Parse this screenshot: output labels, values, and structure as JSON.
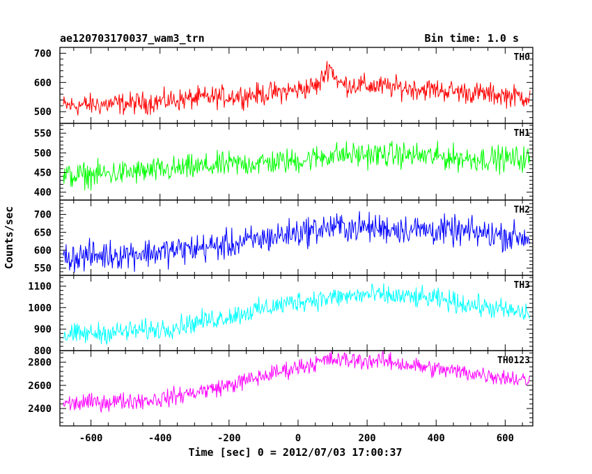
{
  "header": {
    "title": "ae120703170037_wam3_trn",
    "bin_time": "Bin time: 1.0 s"
  },
  "chart_data": {
    "type": "line",
    "xlabel": "Time [sec] 0 = 2012/07/03 17:00:37",
    "ylabel": "Counts/sec",
    "xlim": [
      -690,
      680
    ],
    "x_range": [
      -680,
      672
    ],
    "x_ticks": [
      -600,
      -400,
      -200,
      0,
      200,
      400,
      600
    ],
    "grid": false,
    "panels": [
      {
        "name": "TH0",
        "color": "#ff0000",
        "ylim": [
          460,
          720
        ],
        "y_ticks": [
          500,
          600,
          700
        ],
        "trend": [
          [
            -680,
            520
          ],
          [
            -450,
            530
          ],
          [
            -300,
            545
          ],
          [
            -100,
            560
          ],
          [
            0,
            575
          ],
          [
            60,
            590
          ],
          [
            90,
            660
          ],
          [
            120,
            595
          ],
          [
            250,
            585
          ],
          [
            400,
            575
          ],
          [
            550,
            560
          ],
          [
            672,
            550
          ]
        ],
        "noise_amplitude": 35
      },
      {
        "name": "TH1",
        "color": "#00ff00",
        "ylim": [
          380,
          575
        ],
        "y_ticks": [
          400,
          450,
          500,
          550
        ],
        "trend": [
          [
            -680,
            440
          ],
          [
            -400,
            455
          ],
          [
            -200,
            470
          ],
          [
            0,
            480
          ],
          [
            100,
            495
          ],
          [
            300,
            495
          ],
          [
            500,
            485
          ],
          [
            672,
            485
          ]
        ],
        "noise_amplitude": 30
      },
      {
        "name": "TH2",
        "color": "#0000ff",
        "ylim": [
          530,
          740
        ],
        "y_ticks": [
          550,
          600,
          650,
          700
        ],
        "trend": [
          [
            -680,
            580
          ],
          [
            -400,
            595
          ],
          [
            -200,
            615
          ],
          [
            0,
            650
          ],
          [
            100,
            665
          ],
          [
            300,
            660
          ],
          [
            500,
            650
          ],
          [
            672,
            635
          ]
        ],
        "noise_amplitude": 38
      },
      {
        "name": "TH3",
        "color": "#00ffff",
        "ylim": [
          800,
          1150
        ],
        "y_ticks": [
          800,
          900,
          1000,
          1100
        ],
        "trend": [
          [
            -680,
            870
          ],
          [
            -400,
            900
          ],
          [
            -200,
            960
          ],
          [
            0,
            1030
          ],
          [
            200,
            1060
          ],
          [
            400,
            1040
          ],
          [
            550,
            1000
          ],
          [
            672,
            970
          ]
        ],
        "noise_amplitude": 45
      },
      {
        "name": "TH0123",
        "color": "#ff00ff",
        "ylim": [
          2250,
          2900
        ],
        "y_ticks": [
          2400,
          2600,
          2800
        ],
        "trend": [
          [
            -680,
            2440
          ],
          [
            -400,
            2480
          ],
          [
            -200,
            2600
          ],
          [
            0,
            2760
          ],
          [
            90,
            2820
          ],
          [
            250,
            2810
          ],
          [
            400,
            2740
          ],
          [
            550,
            2690
          ],
          [
            672,
            2640
          ]
        ],
        "noise_amplitude": 70
      }
    ]
  }
}
